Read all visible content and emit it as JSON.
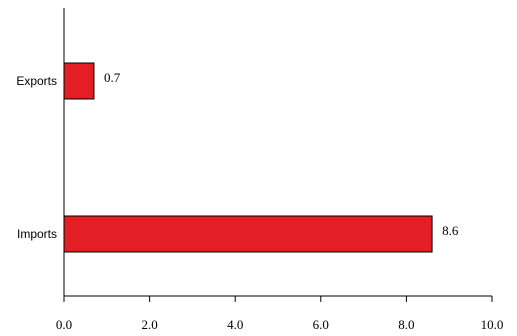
{
  "chart_data": {
    "type": "bar",
    "orientation": "horizontal",
    "categories": [
      "Exports",
      "Imports"
    ],
    "values": [
      0.7,
      8.6
    ],
    "value_labels": [
      "0.7",
      "8.6"
    ],
    "xlim": [
      0,
      10
    ],
    "x_ticks": [
      0,
      2,
      4,
      6,
      8,
      10
    ],
    "x_tick_labels": [
      "0.0",
      "2.0",
      "4.0",
      "6.0",
      "8.0",
      "10.0"
    ],
    "title": "",
    "xlabel": "",
    "ylabel": "",
    "grid": false,
    "legend": "none",
    "colors": {
      "bar_fill": "#e31e24",
      "bar_stroke": "#000000",
      "axis": "#000000",
      "text": "#000000"
    }
  }
}
